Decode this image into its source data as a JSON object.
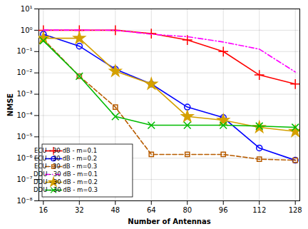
{
  "chart_data": {
    "type": "line",
    "xlabel": "Number of Antennas",
    "ylabel": "NMSE",
    "x": [
      16,
      32,
      48,
      64,
      80,
      96,
      112,
      128
    ],
    "xlim": [
      14,
      130
    ],
    "xticks": [
      16,
      32,
      48,
      64,
      80,
      96,
      112,
      128
    ],
    "ylim": [
      1e-08,
      10
    ],
    "yticks": [
      {
        "value": 1e-08,
        "label": "10⁻⁸"
      },
      {
        "value": 1e-07,
        "label": "10⁻⁷"
      },
      {
        "value": 1e-06,
        "label": "10⁻⁶"
      },
      {
        "value": 1e-05,
        "label": "10⁻⁵"
      },
      {
        "value": 0.0001,
        "label": "10⁻⁴"
      },
      {
        "value": 0.001,
        "label": "10⁻³"
      },
      {
        "value": 0.01,
        "label": "10⁻²"
      },
      {
        "value": 0.1,
        "label": "10⁻¹"
      },
      {
        "value": 1,
        "label": "10⁰"
      },
      {
        "value": 10,
        "label": "10¹"
      }
    ],
    "log": "y",
    "grid": true,
    "legend": "lower left",
    "series": [
      {
        "name": "ECU - 30 dB - m=0.1",
        "color": "#ff0000",
        "marker": "plus",
        "line_style": "solid",
        "values": [
          1.0,
          1.0,
          1.0,
          0.7,
          0.35,
          0.1,
          0.008,
          0.003
        ]
      },
      {
        "name": "ECU - 30 dB - m=0.2",
        "color": "#0000ff",
        "marker": "circle",
        "line_style": "solid",
        "values": [
          0.65,
          0.18,
          0.015,
          0.003,
          0.00025,
          8e-05,
          3e-06,
          8e-07
        ]
      },
      {
        "name": "ECU - 30 dB - m=0.3",
        "color": "#b85c00",
        "marker": "square",
        "line_style": "dashed",
        "values": [
          0.38,
          0.007,
          0.00025,
          1.5e-06,
          1.5e-06,
          1.5e-06,
          9e-07,
          8e-07
        ]
      },
      {
        "name": "DDU - 30 dB - m=0.1",
        "color": "#ff00ff",
        "marker": "none",
        "line_style": "dashdot",
        "values": [
          1.02,
          1.02,
          1.0,
          0.65,
          0.5,
          0.28,
          0.13,
          0.011
        ]
      },
      {
        "name": "DDU - 30 dB - m=0.2",
        "color": "#d4a000",
        "marker": "star",
        "line_style": "solid",
        "values": [
          0.42,
          0.42,
          0.012,
          0.003,
          9e-05,
          6e-05,
          2.8e-05,
          1.8e-05
        ]
      },
      {
        "name": "DDU - 30 dB - m=0.3",
        "color": "#00bb00",
        "marker": "times",
        "line_style": "solid",
        "values": [
          0.32,
          0.007,
          9e-05,
          3.5e-05,
          3.5e-05,
          3.5e-05,
          3.2e-05,
          2.8e-05
        ]
      }
    ]
  }
}
